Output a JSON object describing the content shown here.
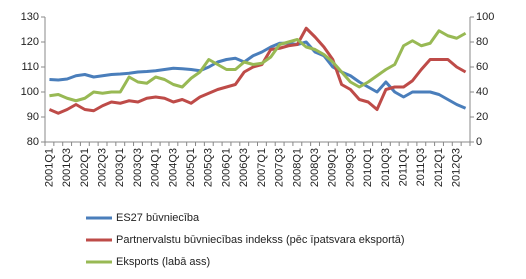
{
  "chart_data": {
    "type": "line",
    "categories": [
      "2001Q1",
      null,
      "2001Q3",
      null,
      "2002Q1",
      null,
      "2002Q3",
      null,
      "2003Q1",
      null,
      "2003Q3",
      null,
      "2004Q1",
      null,
      "2004Q3",
      null,
      "2005Q1",
      null,
      "2005Q3",
      null,
      "2006Q1",
      null,
      "2006Q3",
      null,
      "2007Q1",
      null,
      "2007Q3",
      null,
      "2008Q1",
      null,
      "2008Q3",
      null,
      "2009Q1",
      null,
      "2009Q3",
      null,
      "2010Q1",
      null,
      "2010Q3",
      null,
      "2011Q1",
      null,
      "2011Q3",
      null,
      "2012Q1",
      null,
      "2012Q3",
      null
    ],
    "series": [
      {
        "name": "ES27 būvniecība",
        "color": "#4a7ebb",
        "values": [
          105,
          104.8,
          105.2,
          106.5,
          107,
          106,
          106.5,
          107,
          107.2,
          107.5,
          108,
          108.2,
          108.5,
          109,
          109.5,
          109.3,
          109,
          108.5,
          110,
          112,
          113,
          113.5,
          112,
          114.5,
          116,
          118,
          119.5,
          119.5,
          119,
          120,
          116,
          114.5,
          110,
          108,
          106.5,
          104,
          102,
          100,
          104,
          100,
          98,
          100,
          100,
          100,
          99,
          97,
          95,
          93.5
        ]
      },
      {
        "name": "Partnervalstu būvniecības indekss (pēc īpatsvara eksportā)",
        "color": "#be4b48",
        "values": [
          93,
          91.5,
          93,
          95,
          93,
          92.5,
          94.5,
          96,
          95.5,
          96.5,
          96,
          97.5,
          98,
          97.5,
          96,
          97,
          95.5,
          98,
          99.5,
          101,
          102,
          103,
          108,
          110,
          111,
          117,
          117.5,
          118.5,
          119,
          125.5,
          122,
          118,
          113,
          103,
          101,
          97,
          96,
          93,
          101,
          102,
          102,
          104.5,
          109,
          113,
          113,
          113,
          110,
          108
        ]
      },
      {
        "name": "Eksports (labā ass)",
        "color": "#98b954",
        "axis": "y2",
        "values": [
          37,
          38,
          35,
          33,
          35,
          40,
          39,
          40,
          40,
          52,
          48,
          47,
          52,
          50,
          46,
          44,
          51,
          56,
          66,
          62,
          58,
          58,
          64,
          62,
          63,
          68,
          78,
          80,
          82,
          76,
          74,
          70,
          64,
          56,
          48,
          44,
          48,
          53,
          58,
          62,
          77,
          81,
          77,
          79,
          89,
          85,
          83,
          87
        ]
      }
    ],
    "ylim": [
      80,
      130
    ],
    "yticks": [
      80,
      90,
      100,
      110,
      120,
      130
    ],
    "y2lim": [
      0,
      100
    ],
    "y2ticks": [
      0,
      20,
      40,
      60,
      80,
      100
    ],
    "grid": false,
    "legend": "bottom"
  }
}
